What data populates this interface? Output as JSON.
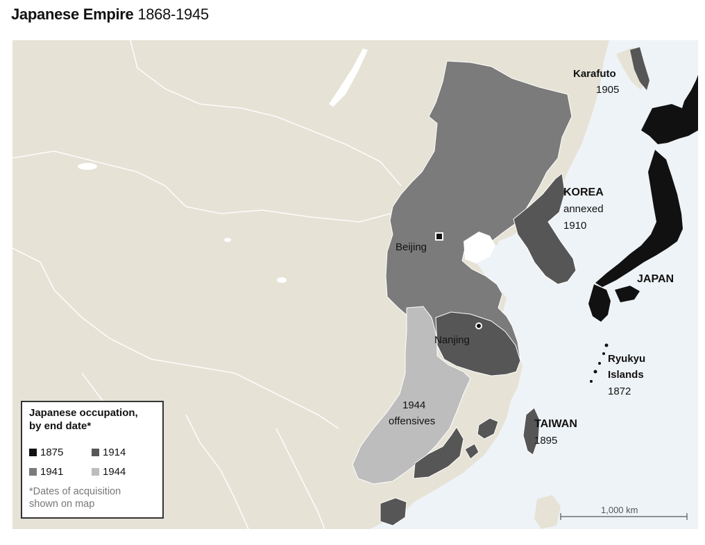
{
  "title": {
    "bold": "Japanese Empire",
    "years": "1868-1945"
  },
  "colors": {
    "land": "#e6e2d6",
    "sea": "#eef3f7",
    "lake": "#ffffff",
    "c1875": "#111111",
    "c1914": "#565656",
    "c1941": "#7b7b7b",
    "c1944": "#bdbdbd",
    "border": "#ffffff"
  },
  "labels": {
    "karafuto": "Karafuto",
    "karafuto_year": "1905",
    "korea": "KOREA",
    "korea_annexed": "annexed",
    "korea_year": "1910",
    "japan": "JAPAN",
    "beijing": "Beijing",
    "nanjing": "Nanjing",
    "ryukyu1": "Ryukyu",
    "ryukyu2": "Islands",
    "ryukyu_year": "1872",
    "taiwan": "TAIWAN",
    "taiwan_year": "1895",
    "offensives1": "1944",
    "offensives2": "offensives"
  },
  "legend": {
    "title1": "Japanese occupation,",
    "title2": "by end date*",
    "items": [
      {
        "label": "1875",
        "color": "#111111"
      },
      {
        "label": "1914",
        "color": "#565656"
      },
      {
        "label": "1941",
        "color": "#7b7b7b"
      },
      {
        "label": "1944",
        "color": "#bdbdbd"
      }
    ],
    "note1": "*Dates of acquisition",
    "note2": "shown on map"
  },
  "scale": {
    "label": "1,000 km"
  }
}
